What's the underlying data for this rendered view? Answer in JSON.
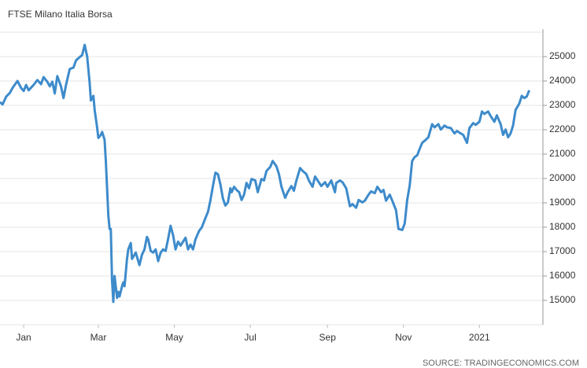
{
  "chart_data": {
    "type": "line",
    "title": "FTSE Milano Italia Borsa",
    "source": "SOURCE: TRADINGECONOMICS.COM",
    "color": "#3d8bcb",
    "grid": true,
    "xlim": [
      -19,
      417
    ],
    "ylim": [
      14000,
      26000
    ],
    "yticks": [
      15000,
      16000,
      17000,
      18000,
      19000,
      20000,
      21000,
      22000,
      23000,
      24000,
      25000
    ],
    "xticks": [
      {
        "value": 0,
        "label": "Jan"
      },
      {
        "value": 60,
        "label": "Mar"
      },
      {
        "value": 121,
        "label": "May"
      },
      {
        "value": 182,
        "label": "Jul"
      },
      {
        "value": 244,
        "label": "Sep"
      },
      {
        "value": 305,
        "label": "Nov"
      },
      {
        "value": 366,
        "label": "2021"
      }
    ],
    "x": [
      -19,
      -17,
      -14,
      -11,
      -9,
      -5,
      -2,
      0,
      2,
      4,
      8,
      11,
      14,
      16,
      19,
      21,
      23,
      25,
      27,
      30,
      32,
      34,
      37,
      40,
      42,
      44,
      47,
      49,
      51,
      53,
      54,
      56,
      57,
      59,
      60,
      62,
      63,
      65,
      66,
      68,
      69,
      70,
      71,
      72,
      73,
      75,
      76,
      77,
      79,
      80,
      81,
      83,
      84,
      86,
      87,
      89,
      90,
      92,
      93,
      95,
      97,
      99,
      100,
      102,
      104,
      106,
      108,
      110,
      112,
      114,
      116,
      118,
      120,
      122,
      124,
      126,
      128,
      130,
      132,
      134,
      136,
      138,
      141,
      143,
      146,
      148,
      150,
      152,
      154,
      156,
      158,
      160,
      162,
      164,
      166,
      167,
      169,
      171,
      173,
      175,
      177,
      179,
      181,
      183,
      186,
      188,
      191,
      193,
      195,
      198,
      200,
      203,
      205,
      207,
      210,
      212,
      215,
      217,
      219,
      222,
      224,
      227,
      229,
      232,
      234,
      237,
      239,
      242,
      244,
      247,
      250,
      251,
      254,
      256,
      259,
      262,
      264,
      267,
      269,
      272,
      274,
      277,
      279,
      282,
      284,
      287,
      289,
      291,
      294,
      296,
      299,
      301,
      304,
      306,
      308,
      310,
      312,
      314,
      316,
      318,
      320,
      323,
      325,
      328,
      330,
      333,
      335,
      338,
      340,
      343,
      346,
      348,
      351,
      353,
      356,
      358,
      361,
      363,
      366,
      368,
      370,
      373,
      375,
      378,
      380,
      383,
      385,
      387,
      389,
      391,
      393,
      395,
      398,
      400,
      402,
      404,
      406
    ],
    "values": [
      23135,
      23040,
      23360,
      23520,
      23710,
      24000,
      23710,
      23590,
      23840,
      23620,
      23840,
      24040,
      23870,
      24160,
      23970,
      23780,
      23970,
      23490,
      24200,
      23780,
      23300,
      23840,
      24490,
      24550,
      24840,
      24940,
      25060,
      25480,
      25000,
      23940,
      23200,
      23390,
      22810,
      22100,
      21660,
      21790,
      21910,
      21590,
      20720,
      18470,
      17930,
      17930,
      15840,
      14940,
      16000,
      15100,
      15350,
      15160,
      15580,
      15740,
      15580,
      16700,
      17090,
      17350,
      16700,
      16870,
      16960,
      16610,
      16450,
      16870,
      17090,
      17600,
      17510,
      17030,
      16960,
      17090,
      16610,
      16960,
      17090,
      17030,
      17510,
      18060,
      17670,
      17090,
      17410,
      17250,
      17410,
      17570,
      17090,
      17290,
      17090,
      17510,
      17860,
      17990,
      18380,
      18630,
      19120,
      19690,
      20240,
      20180,
      19760,
      19180,
      18890,
      19020,
      19600,
      19440,
      19660,
      19530,
      19440,
      19120,
      19340,
      19820,
      19600,
      19980,
      19920,
      19440,
      19980,
      19920,
      20310,
      20470,
      20720,
      20500,
      20180,
      19660,
      19210,
      19440,
      19690,
      19500,
      19920,
      20430,
      20310,
      20180,
      19920,
      19660,
      20080,
      19850,
      19690,
      19850,
      19660,
      19920,
      19440,
      19820,
      19920,
      19850,
      19600,
      18860,
      18950,
      18800,
      19120,
      19020,
      19090,
      19340,
      19470,
      19400,
      19660,
      19440,
      19530,
      19090,
      19340,
      19090,
      18700,
      17930,
      17890,
      18150,
      19120,
      19720,
      20720,
      20880,
      20950,
      21210,
      21460,
      21590,
      21690,
      22230,
      22100,
      22230,
      22010,
      22170,
      22100,
      22070,
      21850,
      21950,
      21850,
      21790,
      21460,
      22070,
      22270,
      22200,
      22330,
      22750,
      22650,
      22750,
      22560,
      22330,
      22590,
      22230,
      21790,
      22010,
      21690,
      21850,
      22170,
      22810,
      23070,
      23390,
      23300,
      23360,
      23620
    ]
  }
}
